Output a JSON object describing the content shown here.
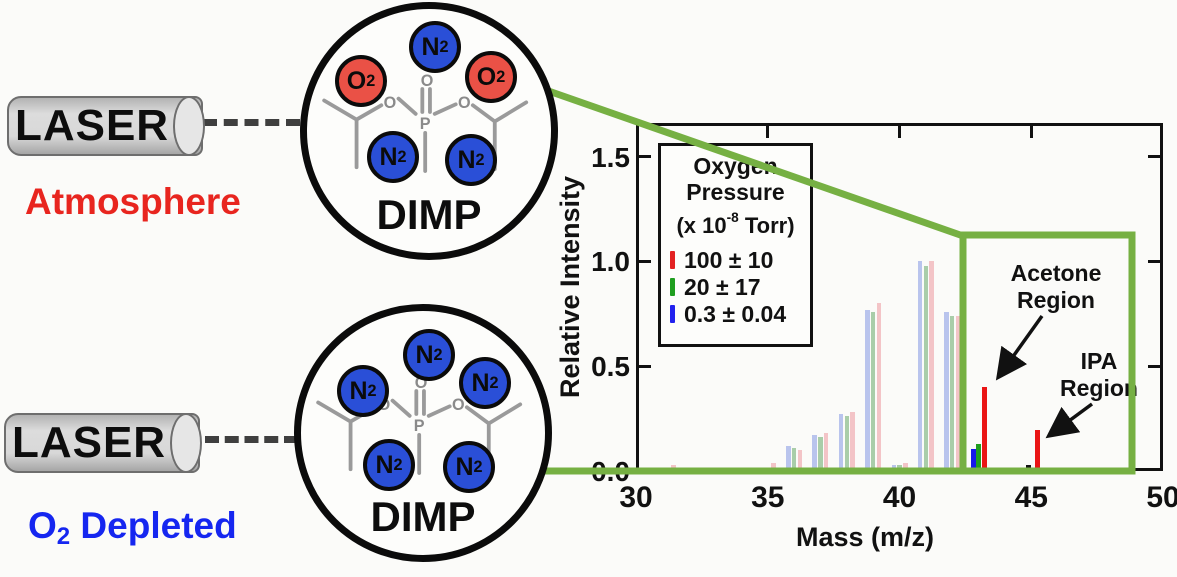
{
  "left_panel": {
    "laser_top_label": "LASER",
    "laser_bottom_label": "LASER",
    "atmosphere_label": "Atmosphere",
    "depleted_base": "O",
    "depleted_sub": "2",
    "depleted_rest": " Depleted"
  },
  "circles": {
    "top": {
      "name": "DIMP",
      "gases": [
        {
          "base": "N",
          "sub": "2",
          "type": "N2"
        },
        {
          "base": "O",
          "sub": "2",
          "type": "O2"
        },
        {
          "base": "O",
          "sub": "2",
          "type": "O2"
        },
        {
          "base": "N",
          "sub": "2",
          "type": "N2"
        },
        {
          "base": "N",
          "sub": "2",
          "type": "N2"
        }
      ]
    },
    "bottom": {
      "name": "DIMP",
      "gases": [
        {
          "base": "N",
          "sub": "2",
          "type": "N2"
        },
        {
          "base": "N",
          "sub": "2",
          "type": "N2"
        },
        {
          "base": "N",
          "sub": "2",
          "type": "N2"
        },
        {
          "base": "N",
          "sub": "2",
          "type": "N2"
        },
        {
          "base": "N",
          "sub": "2",
          "type": "N2"
        }
      ]
    }
  },
  "molecule_atoms": {
    "o_dbl": "O",
    "o_left": "O",
    "o_right": "O",
    "p": "P"
  },
  "legend": {
    "title_line1": "Oxygen",
    "title_line2": "Pressure",
    "units_prefix": "(x 10",
    "units_sup": "-8",
    "units_suffix": " Torr)",
    "entries": [
      {
        "label": "100 ± 10",
        "color": "#e32222"
      },
      {
        "label": "20 ± 17",
        "color": "#1f9e1f"
      },
      {
        "label": "0.3 ± 0.04",
        "color": "#2222ee"
      }
    ]
  },
  "annotations": {
    "acetone_line1": "Acetone",
    "acetone_line2": "Region",
    "ipa_line1": "IPA",
    "ipa_line2": "Region"
  },
  "colors": {
    "zoom_green": "#76b043",
    "n2_blue": "#2a4fd7",
    "o2_red": "#ea5146",
    "atmosphere_red": "#e8251f",
    "depleted_blue": "#1526f0"
  },
  "chart_data": {
    "type": "bar",
    "title": "",
    "xlabel": "Mass (m/z)",
    "ylabel": "Relative Intensity",
    "xlim": [
      30,
      50
    ],
    "ylim": [
      0,
      1.66
    ],
    "x_ticks": [
      30,
      35,
      40,
      45,
      50
    ],
    "x_ticks_top": [
      35,
      40,
      45
    ],
    "y_ticks": [
      0.0,
      0.5,
      1.0,
      1.5
    ],
    "grid": false,
    "legend_position": "upper-left",
    "zoom_region": {
      "x0": 42.4,
      "x1": 48.8,
      "y0": 0,
      "y1": 1.124
    },
    "series_colors": {
      "solid": {
        "red": "#ea1515",
        "green": "#1f9e1f",
        "blue": "#1717ea",
        "black": "#151515"
      },
      "faded": {
        "red": "#f3c4c7",
        "green": "#a9cda9",
        "blue": "#b9c4ed"
      }
    },
    "peaks": [
      {
        "mz": 31.2,
        "style": "faded",
        "bars": [
          {
            "series": "red",
            "value": 0.03
          }
        ]
      },
      {
        "mz": 35.0,
        "style": "faded",
        "bars": [
          {
            "series": "red",
            "value": 0.04
          }
        ]
      },
      {
        "mz": 36.0,
        "style": "faded",
        "bars": [
          {
            "series": "blue",
            "value": 0.12
          },
          {
            "series": "green",
            "value": 0.11
          },
          {
            "series": "red",
            "value": 0.1
          }
        ]
      },
      {
        "mz": 37.0,
        "style": "faded",
        "bars": [
          {
            "series": "blue",
            "value": 0.17
          },
          {
            "series": "green",
            "value": 0.16
          },
          {
            "series": "red",
            "value": 0.18
          }
        ]
      },
      {
        "mz": 38.0,
        "style": "faded",
        "bars": [
          {
            "series": "blue",
            "value": 0.27
          },
          {
            "series": "green",
            "value": 0.26
          },
          {
            "series": "red",
            "value": 0.28
          }
        ]
      },
      {
        "mz": 39.0,
        "style": "faded",
        "bars": [
          {
            "series": "blue",
            "value": 0.77
          },
          {
            "series": "green",
            "value": 0.76
          },
          {
            "series": "red",
            "value": 0.8
          }
        ]
      },
      {
        "mz": 40.0,
        "style": "faded",
        "bars": [
          {
            "series": "blue",
            "value": 0.03
          },
          {
            "series": "green",
            "value": 0.03
          },
          {
            "series": "red",
            "value": 0.04
          }
        ]
      },
      {
        "mz": 41.0,
        "style": "faded",
        "bars": [
          {
            "series": "blue",
            "value": 1.0
          },
          {
            "series": "green",
            "value": 0.98
          },
          {
            "series": "red",
            "value": 1.0
          }
        ]
      },
      {
        "mz": 42.0,
        "style": "faded",
        "bars": [
          {
            "series": "blue",
            "value": 0.76
          },
          {
            "series": "green",
            "value": 0.74
          },
          {
            "series": "red",
            "value": 0.74
          }
        ]
      },
      {
        "mz": 43.0,
        "style": "solid",
        "bars": [
          {
            "series": "blue",
            "value": 0.105
          },
          {
            "series": "green",
            "value": 0.13
          },
          {
            "series": "red",
            "value": 0.4
          }
        ]
      },
      {
        "mz": 45.0,
        "style": "solid",
        "bars": [
          {
            "series": "black",
            "value": 0.03
          },
          {
            "series": "red",
            "value": 0.195
          }
        ]
      }
    ]
  }
}
